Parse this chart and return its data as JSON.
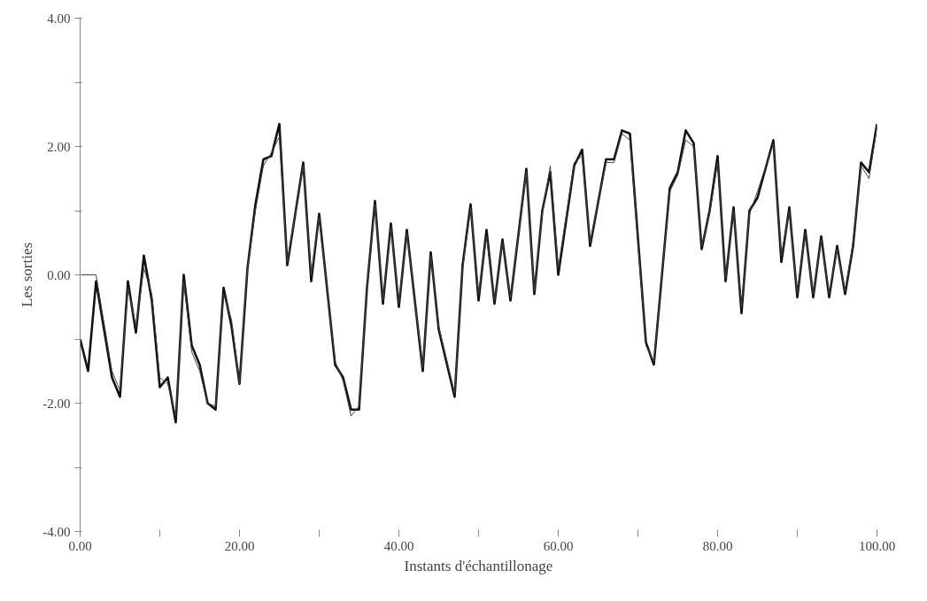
{
  "chart_data": {
    "type": "line",
    "xlabel": "Instants d'échantillonage",
    "ylabel": "Les sorties",
    "xlim": [
      0,
      100
    ],
    "ylim": [
      -4,
      4
    ],
    "xticks": [
      {
        "value": 0,
        "label": "0.00"
      },
      {
        "value": 10,
        "label": null
      },
      {
        "value": 20,
        "label": "20.00"
      },
      {
        "value": 30,
        "label": null
      },
      {
        "value": 40,
        "label": "40.00"
      },
      {
        "value": 50,
        "label": null
      },
      {
        "value": 60,
        "label": "60.00"
      },
      {
        "value": 70,
        "label": null
      },
      {
        "value": 80,
        "label": "80.00"
      },
      {
        "value": 90,
        "label": null
      },
      {
        "value": 100,
        "label": "100.00"
      }
    ],
    "yticks": [
      {
        "value": -4,
        "label": "-4.00"
      },
      {
        "value": -3,
        "label": null
      },
      {
        "value": -2,
        "label": "-2.00"
      },
      {
        "value": -1,
        "label": null
      },
      {
        "value": 0,
        "label": "0.00"
      },
      {
        "value": 1,
        "label": null
      },
      {
        "value": 2,
        "label": "2.00"
      },
      {
        "value": 3,
        "label": null
      },
      {
        "value": 4,
        "label": "4.00"
      }
    ],
    "grid": false,
    "line_style": "solid",
    "marker": "none",
    "series": [
      {
        "color": "#111111",
        "x": [
          0,
          1,
          2,
          4,
          5,
          6,
          7,
          8,
          9,
          10,
          11,
          12,
          13,
          14,
          15,
          16,
          17,
          18,
          19,
          20,
          21,
          22,
          23,
          24,
          25,
          26,
          28,
          29,
          30,
          32,
          33,
          34,
          35,
          36,
          37,
          38,
          39,
          40,
          41,
          43,
          44,
          45,
          47,
          48,
          49,
          50,
          51,
          52,
          53,
          54,
          56,
          57,
          58,
          59,
          60,
          62,
          63,
          64,
          66,
          67,
          68,
          69,
          71,
          72,
          74,
          75,
          76,
          77,
          78,
          79,
          80,
          81,
          82,
          83,
          84,
          85,
          87,
          88,
          89,
          90,
          91,
          92,
          93,
          94,
          95,
          96,
          97,
          98,
          99,
          100
        ],
        "values": [
          -1.0,
          -1.5,
          -0.1,
          -1.6,
          -1.9,
          -0.1,
          -0.9,
          0.3,
          -0.4,
          -1.75,
          -1.6,
          -2.3,
          0.0,
          -1.1,
          -1.4,
          -2.0,
          -2.1,
          -0.2,
          -0.8,
          -1.7,
          0.1,
          1.1,
          1.8,
          1.85,
          2.35,
          0.15,
          1.75,
          -0.1,
          0.95,
          -1.4,
          -1.6,
          -2.1,
          -2.1,
          -0.2,
          1.15,
          -0.45,
          0.8,
          -0.5,
          0.7,
          -1.5,
          0.35,
          -0.85,
          -1.9,
          0.15,
          1.1,
          -0.4,
          0.7,
          -0.45,
          0.55,
          -0.4,
          1.65,
          -0.3,
          1.0,
          1.6,
          0.0,
          1.7,
          1.95,
          0.45,
          1.8,
          1.8,
          2.25,
          2.2,
          -1.05,
          -1.4,
          1.35,
          1.6,
          2.25,
          2.05,
          0.4,
          1.0,
          1.85,
          -0.1,
          1.05,
          -0.6,
          1.0,
          1.2,
          2.1,
          0.2,
          1.05,
          -0.35,
          0.7,
          -0.35,
          0.6,
          -0.35,
          0.45,
          -0.3,
          0.45,
          1.75,
          1.6,
          2.35
        ]
      },
      {
        "color": "#444444",
        "x": [
          0,
          2,
          4,
          5,
          6,
          7,
          8,
          9,
          10,
          11,
          12,
          13,
          14,
          15,
          16,
          17,
          18,
          19,
          20,
          21,
          22,
          23,
          24,
          25,
          26,
          28,
          29,
          30,
          32,
          33,
          34,
          35,
          36,
          37,
          38,
          39,
          40,
          41,
          43,
          44,
          45,
          47,
          48,
          49,
          50,
          51,
          52,
          53,
          54,
          56,
          57,
          58,
          59,
          60,
          62,
          63,
          64,
          66,
          67,
          68,
          69,
          71,
          72,
          74,
          75,
          76,
          77,
          78,
          79,
          80,
          81,
          82,
          83,
          84,
          85,
          87,
          88,
          89,
          90,
          91,
          92,
          93,
          94,
          95,
          96,
          97,
          98,
          99,
          100
        ],
        "values": [
          0.0,
          0.0,
          -1.5,
          -1.8,
          -0.2,
          -0.8,
          0.1,
          -0.3,
          -1.6,
          -1.7,
          -2.2,
          -0.1,
          -1.2,
          -1.5,
          -2.0,
          -2.05,
          -0.3,
          -0.7,
          -1.7,
          0.1,
          1.0,
          1.7,
          1.9,
          2.15,
          0.2,
          1.7,
          0.0,
          0.9,
          -1.35,
          -1.65,
          -2.2,
          -2.05,
          -0.2,
          1.1,
          -0.4,
          0.75,
          -0.45,
          0.65,
          -1.45,
          0.3,
          -0.8,
          -1.85,
          0.1,
          1.05,
          -0.3,
          0.6,
          -0.4,
          0.5,
          -0.35,
          1.6,
          -0.25,
          0.95,
          1.7,
          0.1,
          1.75,
          1.85,
          0.5,
          1.75,
          1.75,
          2.2,
          2.1,
          -1.1,
          -1.35,
          1.3,
          1.55,
          2.1,
          2.0,
          0.45,
          0.95,
          1.75,
          -0.05,
          1.0,
          -0.5,
          0.95,
          1.3,
          2.05,
          0.3,
          1.0,
          -0.3,
          0.65,
          -0.3,
          0.55,
          -0.3,
          0.4,
          -0.25,
          0.5,
          1.7,
          1.5,
          2.3
        ]
      }
    ]
  }
}
